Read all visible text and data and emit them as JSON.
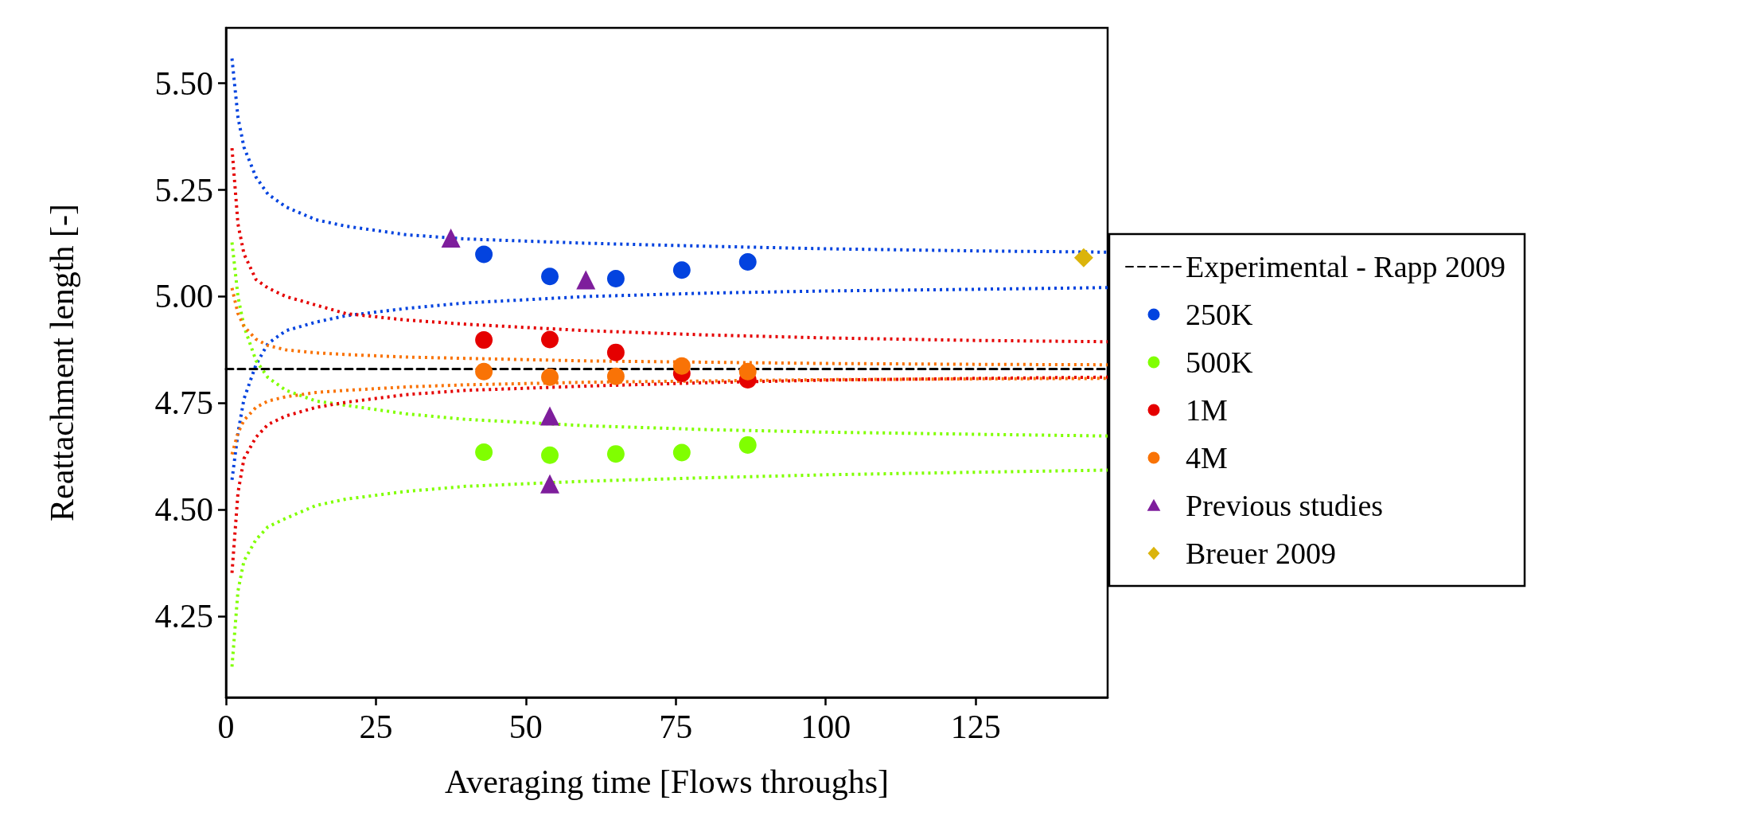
{
  "chart_data": {
    "type": "scatter",
    "xlabel": "Averaging time [Flows throughs]",
    "ylabel": "Reattachment length [-]",
    "xlim": [
      0,
      147
    ],
    "ylim": [
      4.06,
      5.63
    ],
    "xticks": [
      0,
      25,
      50,
      75,
      100,
      125
    ],
    "yticks": [
      {
        "value": 4.25,
        "label": "4.25"
      },
      {
        "value": 4.5,
        "label": "4.50"
      },
      {
        "value": 4.75,
        "label": "4.75"
      },
      {
        "value": 5,
        "label": "5.00"
      },
      {
        "value": 5.25,
        "label": "5.25"
      },
      {
        "value": 5.5,
        "label": "5.50"
      }
    ],
    "legend": "right",
    "series": [
      {
        "type": "line",
        "name": "Experimental - Rapp 2009",
        "color": "#000000",
        "line_style": "dashed",
        "marker": "none",
        "x": [
          0,
          147
        ],
        "values": [
          4.83,
          4.83
        ]
      },
      {
        "type": "line",
        "color": "#0343df",
        "line_style": "dotted",
        "marker": "none",
        "x": [
          1,
          2,
          3,
          5,
          7,
          10,
          15,
          20,
          30,
          40,
          60,
          80,
          100,
          125,
          147
        ],
        "values": [
          5.558,
          5.42,
          5.35,
          5.28,
          5.24,
          5.21,
          5.18,
          5.165,
          5.145,
          5.135,
          5.125,
          5.118,
          5.112,
          5.107,
          5.104
        ]
      },
      {
        "type": "line",
        "color": "#0343df",
        "line_style": "dotted",
        "marker": "none",
        "x": [
          1,
          2,
          3,
          5,
          7,
          10,
          15,
          20,
          30,
          40,
          60,
          80,
          100,
          125,
          147
        ],
        "values": [
          4.57,
          4.68,
          4.76,
          4.84,
          4.89,
          4.92,
          4.94,
          4.955,
          4.972,
          4.985,
          5.0,
          5.008,
          5.013,
          5.017,
          5.021
        ]
      },
      {
        "type": "line",
        "color": "#80ff00",
        "line_style": "dotted",
        "marker": "none",
        "x": [
          1,
          2,
          3,
          5,
          7,
          10,
          15,
          20,
          30,
          40,
          60,
          80,
          100,
          125,
          147
        ],
        "values": [
          5.127,
          5.0,
          4.93,
          4.85,
          4.81,
          4.78,
          4.755,
          4.745,
          4.725,
          4.712,
          4.697,
          4.688,
          4.682,
          4.677,
          4.673
        ]
      },
      {
        "type": "line",
        "color": "#80ff00",
        "line_style": "dotted",
        "marker": "none",
        "x": [
          1,
          2,
          3,
          5,
          7,
          10,
          15,
          20,
          30,
          40,
          60,
          80,
          100,
          125,
          147
        ],
        "values": [
          4.132,
          4.31,
          4.38,
          4.43,
          4.46,
          4.48,
          4.51,
          4.525,
          4.543,
          4.555,
          4.567,
          4.575,
          4.582,
          4.588,
          4.593
        ]
      },
      {
        "type": "line",
        "color": "#e50000",
        "line_style": "dotted",
        "marker": "none",
        "x": [
          1,
          2,
          3,
          5,
          7,
          10,
          15,
          20,
          30,
          40,
          60,
          80,
          100,
          125,
          147
        ],
        "values": [
          5.348,
          5.17,
          5.1,
          5.04,
          5.02,
          5.0,
          4.98,
          4.96,
          4.945,
          4.935,
          4.92,
          4.91,
          4.903,
          4.897,
          4.894
        ]
      },
      {
        "type": "line",
        "color": "#e50000",
        "line_style": "dotted",
        "marker": "none",
        "x": [
          1,
          2,
          3,
          5,
          7,
          10,
          15,
          20,
          30,
          40,
          60,
          80,
          100,
          125,
          147
        ],
        "values": [
          4.352,
          4.54,
          4.62,
          4.67,
          4.7,
          4.72,
          4.74,
          4.752,
          4.77,
          4.78,
          4.79,
          4.798,
          4.804,
          4.808,
          4.811
        ]
      },
      {
        "type": "line",
        "color": "#f97306",
        "line_style": "dotted",
        "marker": "none",
        "x": [
          1,
          2,
          3,
          5,
          7,
          10,
          15,
          20,
          30,
          40,
          60,
          80,
          100,
          125,
          147
        ],
        "values": [
          5.02,
          4.96,
          4.93,
          4.9,
          4.885,
          4.875,
          4.868,
          4.864,
          4.858,
          4.855,
          4.849,
          4.846,
          4.843,
          4.841,
          4.84
        ]
      },
      {
        "type": "line",
        "color": "#f97306",
        "line_style": "dotted",
        "marker": "none",
        "x": [
          1,
          2,
          3,
          5,
          7,
          10,
          15,
          20,
          30,
          40,
          60,
          80,
          100,
          125,
          147
        ],
        "values": [
          4.63,
          4.68,
          4.71,
          4.74,
          4.755,
          4.765,
          4.775,
          4.78,
          4.788,
          4.793,
          4.799,
          4.802,
          4.805,
          4.807,
          4.808
        ]
      },
      {
        "name": "250K",
        "color": "#0343df",
        "marker": "circle",
        "x": [
          43,
          54,
          65,
          76,
          87
        ],
        "values": [
          5.099,
          5.047,
          5.042,
          5.062,
          5.081
        ]
      },
      {
        "name": "500K",
        "color": "#80ff00",
        "marker": "circle",
        "x": [
          43,
          54,
          65,
          76,
          87
        ],
        "values": [
          4.635,
          4.628,
          4.631,
          4.634,
          4.652
        ]
      },
      {
        "name": "1M",
        "color": "#e50000",
        "marker": "circle",
        "x": [
          43,
          54,
          65,
          76,
          87
        ],
        "values": [
          4.898,
          4.899,
          4.869,
          4.82,
          4.805
        ]
      },
      {
        "name": "4M",
        "color": "#f97306",
        "marker": "circle",
        "x": [
          43,
          54,
          65,
          76,
          87
        ],
        "values": [
          4.824,
          4.811,
          4.813,
          4.837,
          4.824
        ]
      },
      {
        "name": "Previous studies",
        "color": "#7e1e9c",
        "marker": "triangle",
        "x": [
          37.5,
          60,
          54,
          54
        ],
        "values": [
          5.137,
          5.039,
          4.72,
          4.561
        ]
      },
      {
        "name": "Breuer 2009",
        "color": "#dbb40c",
        "marker": "diamond",
        "x": [
          143
        ],
        "values": [
          5.091
        ]
      }
    ]
  }
}
